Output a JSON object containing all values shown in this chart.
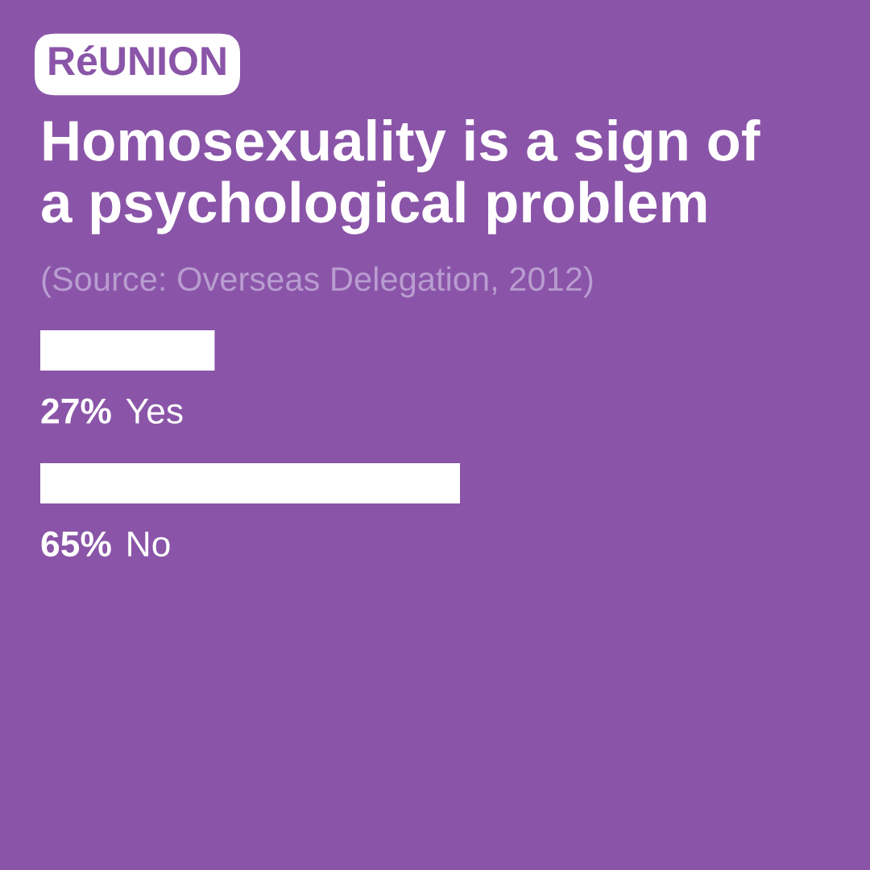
{
  "chart_data": {
    "type": "bar",
    "orientation": "horizontal",
    "title": "Homosexuality is a sign of\na psychological problem",
    "annotations": [
      "RéUNION",
      "(Source: Overseas Delegation, 2012)"
    ],
    "categories": [
      "Yes",
      "No"
    ],
    "values": [
      27,
      65
    ],
    "color": "#ffffff",
    "value_labels": [
      "27%",
      "65%"
    ]
  }
}
